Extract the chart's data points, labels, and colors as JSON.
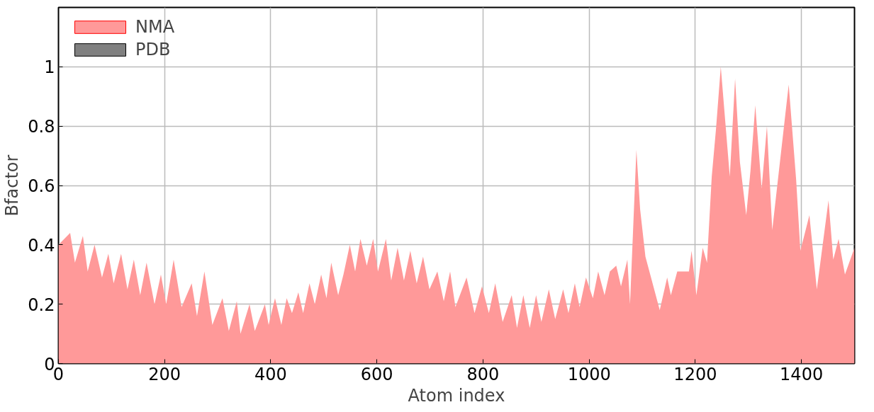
{
  "chart_data": {
    "type": "area",
    "xlabel": "Atom index",
    "ylabel": "Bfactor",
    "x": [
      0,
      22,
      31,
      46,
      55,
      68,
      82,
      94,
      104,
      118,
      130,
      142,
      154,
      166,
      181,
      193,
      203,
      217,
      232,
      251,
      261,
      275,
      290,
      309,
      321,
      336,
      343,
      360,
      370,
      389,
      396,
      408,
      420,
      430,
      440,
      452,
      461,
      473,
      483,
      495,
      505,
      514,
      527,
      537,
      549,
      559,
      569,
      581,
      593,
      602,
      617,
      627,
      639,
      651,
      663,
      675,
      687,
      699,
      714,
      726,
      738,
      748,
      769,
      784,
      798,
      811,
      823,
      837,
      854,
      864,
      876,
      888,
      900,
      910,
      924,
      936,
      951,
      961,
      973,
      982,
      994,
      1007,
      1017,
      1029,
      1039,
      1051,
      1060,
      1072,
      1077,
      1089,
      1096,
      1106,
      1133,
      1147,
      1154,
      1166,
      1188,
      1193,
      1202,
      1214,
      1222,
      1231,
      1239,
      1248,
      1265,
      1275,
      1284,
      1296,
      1304,
      1313,
      1325,
      1335,
      1345,
      1357,
      1376,
      1390,
      1398,
      1415,
      1429,
      1451,
      1460,
      1470,
      1482,
      1500
    ],
    "series": [
      {
        "name": "NMA",
        "color": "#ff9999",
        "values": [
          0.4,
          0.44,
          0.34,
          0.43,
          0.31,
          0.4,
          0.29,
          0.37,
          0.27,
          0.37,
          0.25,
          0.35,
          0.23,
          0.34,
          0.2,
          0.3,
          0.2,
          0.35,
          0.19,
          0.27,
          0.16,
          0.31,
          0.13,
          0.22,
          0.11,
          0.21,
          0.1,
          0.2,
          0.11,
          0.2,
          0.13,
          0.22,
          0.13,
          0.22,
          0.17,
          0.24,
          0.17,
          0.27,
          0.2,
          0.3,
          0.22,
          0.34,
          0.23,
          0.3,
          0.4,
          0.31,
          0.42,
          0.33,
          0.42,
          0.31,
          0.42,
          0.28,
          0.39,
          0.28,
          0.38,
          0.27,
          0.36,
          0.25,
          0.31,
          0.21,
          0.31,
          0.19,
          0.29,
          0.17,
          0.26,
          0.17,
          0.27,
          0.14,
          0.23,
          0.12,
          0.23,
          0.12,
          0.23,
          0.14,
          0.25,
          0.15,
          0.25,
          0.17,
          0.27,
          0.19,
          0.29,
          0.22,
          0.31,
          0.23,
          0.31,
          0.33,
          0.26,
          0.35,
          0.2,
          0.72,
          0.52,
          0.36,
          0.18,
          0.29,
          0.23,
          0.31,
          0.31,
          0.38,
          0.23,
          0.39,
          0.34,
          0.63,
          0.79,
          1.0,
          0.63,
          0.96,
          0.68,
          0.5,
          0.65,
          0.87,
          0.59,
          0.8,
          0.45,
          0.64,
          0.94,
          0.62,
          0.38,
          0.5,
          0.25,
          0.55,
          0.35,
          0.42,
          0.3,
          0.39
        ]
      },
      {
        "name": "PDB",
        "color": "#808080",
        "values": [
          null,
          null,
          null,
          null,
          null,
          null,
          null,
          null,
          null,
          null,
          null,
          null,
          null,
          null,
          null,
          null,
          null,
          null,
          null,
          null,
          null,
          null,
          null,
          null,
          null,
          null,
          null,
          null,
          null,
          null,
          null,
          null,
          null,
          null,
          null,
          null,
          null,
          null,
          null,
          null,
          null,
          null,
          null,
          null,
          null,
          null,
          null,
          null,
          null,
          null,
          null,
          null,
          null,
          null,
          null,
          null,
          null,
          null,
          null,
          null,
          null,
          null,
          null,
          null,
          null,
          null,
          null,
          null,
          null,
          null,
          null,
          null,
          null,
          null,
          null,
          null,
          null,
          null,
          null,
          null,
          null,
          null,
          null,
          null,
          null,
          null,
          null,
          null,
          null,
          null,
          null,
          null,
          null,
          null,
          null,
          null,
          null,
          null,
          null,
          null,
          null,
          null,
          null,
          null,
          null,
          null,
          null,
          null,
          null,
          null,
          null,
          null,
          null,
          null,
          null,
          null,
          null,
          null,
          null,
          null,
          null,
          null,
          null,
          null
        ]
      }
    ],
    "xlim": [
      0,
      1500
    ],
    "ylim": [
      0,
      1.2
    ],
    "xticks": [
      0,
      200,
      400,
      600,
      800,
      1000,
      1200,
      1400
    ],
    "yticks": [
      0,
      0.2,
      0.4,
      0.6,
      0.8,
      1
    ],
    "grid": true,
    "legend": "top left"
  }
}
